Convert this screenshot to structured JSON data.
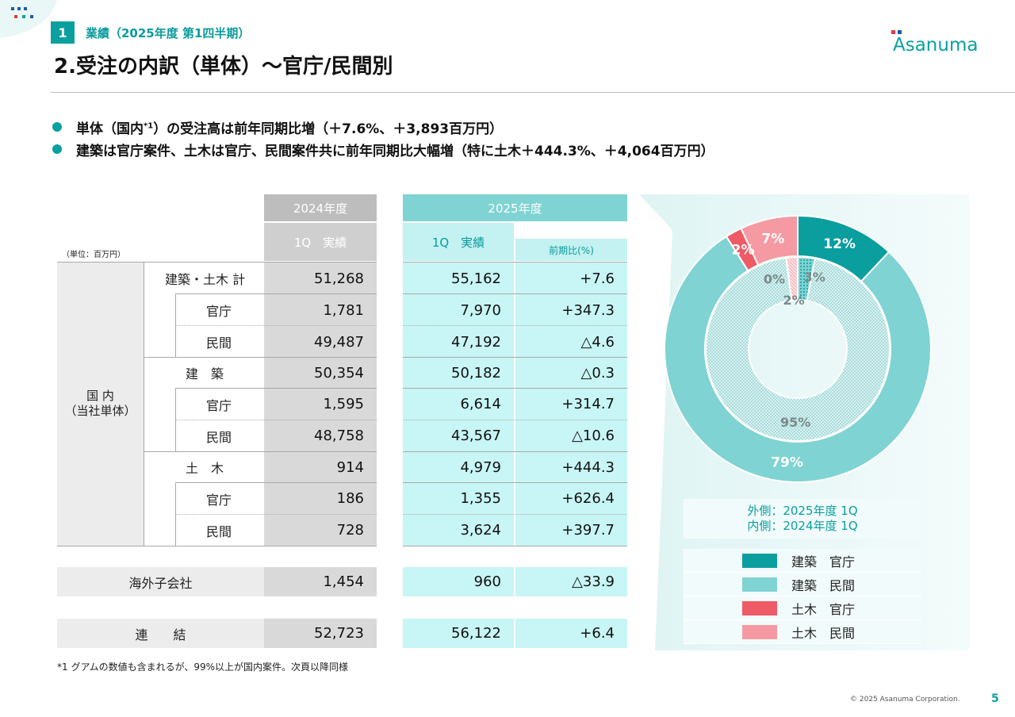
{
  "header": {
    "section_number": "1",
    "section_label": "業績（2025年度 第1四半期）",
    "page_title": "2.受注の内訳（単体）～官庁/民間別",
    "logo_text": "Asanuma"
  },
  "bullets": [
    {
      "pre": "単体（国内",
      "sup": "*1",
      "post": "）の受注高は前年同期比増（＋7.6%、＋3,893百万円）"
    },
    {
      "pre": "建築は官庁案件、土木は官庁、民間案件共に前年同期比大幅増（特に土木＋444.3%、＋4,064百万円）",
      "sup": "",
      "post": ""
    }
  ],
  "table": {
    "unit": "（単位：百万円）",
    "header_2024": "2024年度",
    "header_2025": "2025年度",
    "sub_actual": "1Q　実績",
    "sub_yoy": "前期比(%)",
    "group_label_1": "国 内",
    "group_label_2": "（当社単体）",
    "rows": [
      {
        "label": "建築・土木 計",
        "v2024": "51,268",
        "v2025": "55,162",
        "yoy": "+7.6"
      },
      {
        "label": "官庁",
        "v2024": "1,781",
        "v2025": "7,970",
        "yoy": "+347.3"
      },
      {
        "label": "民間",
        "v2024": "49,487",
        "v2025": "47,192",
        "yoy": "△4.6"
      },
      {
        "label": "建　築",
        "v2024": "50,354",
        "v2025": "50,182",
        "yoy": "△0.3"
      },
      {
        "label": "官庁",
        "v2024": "1,595",
        "v2025": "6,614",
        "yoy": "+314.7"
      },
      {
        "label": "民間",
        "v2024": "48,758",
        "v2025": "43,567",
        "yoy": "△10.6"
      },
      {
        "label": "土　木",
        "v2024": "914",
        "v2025": "4,979",
        "yoy": "+444.3"
      },
      {
        "label": "官庁",
        "v2024": "186",
        "v2025": "1,355",
        "yoy": "+626.4"
      },
      {
        "label": "民間",
        "v2024": "728",
        "v2025": "3,624",
        "yoy": "+397.7"
      }
    ],
    "overseas": {
      "label": "海外子会社",
      "v2024": "1,454",
      "v2025": "960",
      "yoy": "△33.9"
    },
    "consolidated": {
      "label": "連　　結",
      "v2024": "52,723",
      "v2025": "56,122",
      "yoy": "+6.4"
    }
  },
  "footnote": "*1 グアムの数値も含まれるが、99%以上が国内案件。次頁以降同様",
  "footer": {
    "copyright": "© 2025 Asanuma Corporation.",
    "page": "5"
  },
  "chart_data": {
    "type": "pie",
    "subtype": "double-donut",
    "caption_1": "外側：2025年度 1Q",
    "caption_2": "内側：2024年度 1Q",
    "categories": [
      "建築　官庁",
      "建築　民間",
      "土木　官庁",
      "土木　民間"
    ],
    "colors": [
      "#0a9e9e",
      "#7fd3d3",
      "#ef5a67",
      "#f59aa2"
    ],
    "series": [
      {
        "ring": "outer",
        "values": [
          12,
          79,
          2,
          7
        ],
        "labels": [
          "12%",
          "79%",
          "2%",
          "7%"
        ]
      },
      {
        "ring": "inner",
        "values": [
          3,
          95,
          0,
          2
        ],
        "labels": [
          "3%",
          "95%",
          "0%",
          "2%"
        ]
      }
    ]
  }
}
